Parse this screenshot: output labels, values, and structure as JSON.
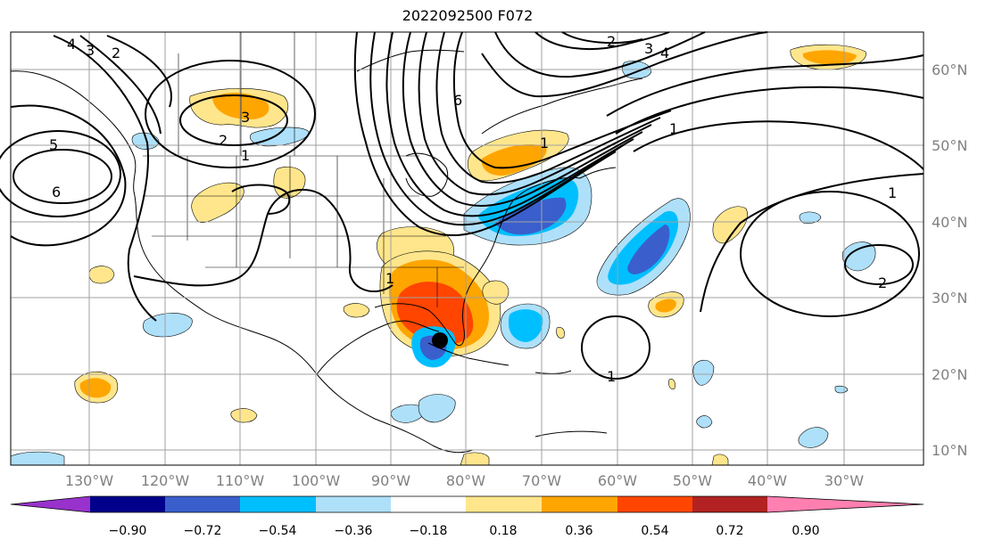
{
  "title": "2022092500 F072",
  "latitude_labels": [
    "60°N",
    "50°N",
    "40°N",
    "30°N",
    "20°N",
    "10°N"
  ],
  "longitude_labels": [
    "130°W",
    "120°W",
    "110°W",
    "100°W",
    "90°W",
    "80°W",
    "70°W",
    "60°W",
    "50°W",
    "40°W",
    "30°W"
  ],
  "contour_labels": [
    "4",
    "3",
    "2",
    "3",
    "2",
    "1",
    "5",
    "6",
    "6",
    "2",
    "3",
    "4",
    "1",
    "1",
    "1",
    "1",
    "2",
    "1"
  ],
  "marker": "storm-center-marker",
  "colorbar": {
    "ticks": [
      "−0.90",
      "−0.72",
      "−0.54",
      "−0.36",
      "−0.18",
      "0.18",
      "0.36",
      "0.54",
      "0.72",
      "0.90"
    ],
    "colors": [
      "#9932cc",
      "#00008b",
      "#3a5fcd",
      "#00bfff",
      "#aee0fa",
      "#ffffff",
      "#ffe68c",
      "#ffa500",
      "#ff4500",
      "#b22222",
      "#ff7fb0"
    ]
  }
}
